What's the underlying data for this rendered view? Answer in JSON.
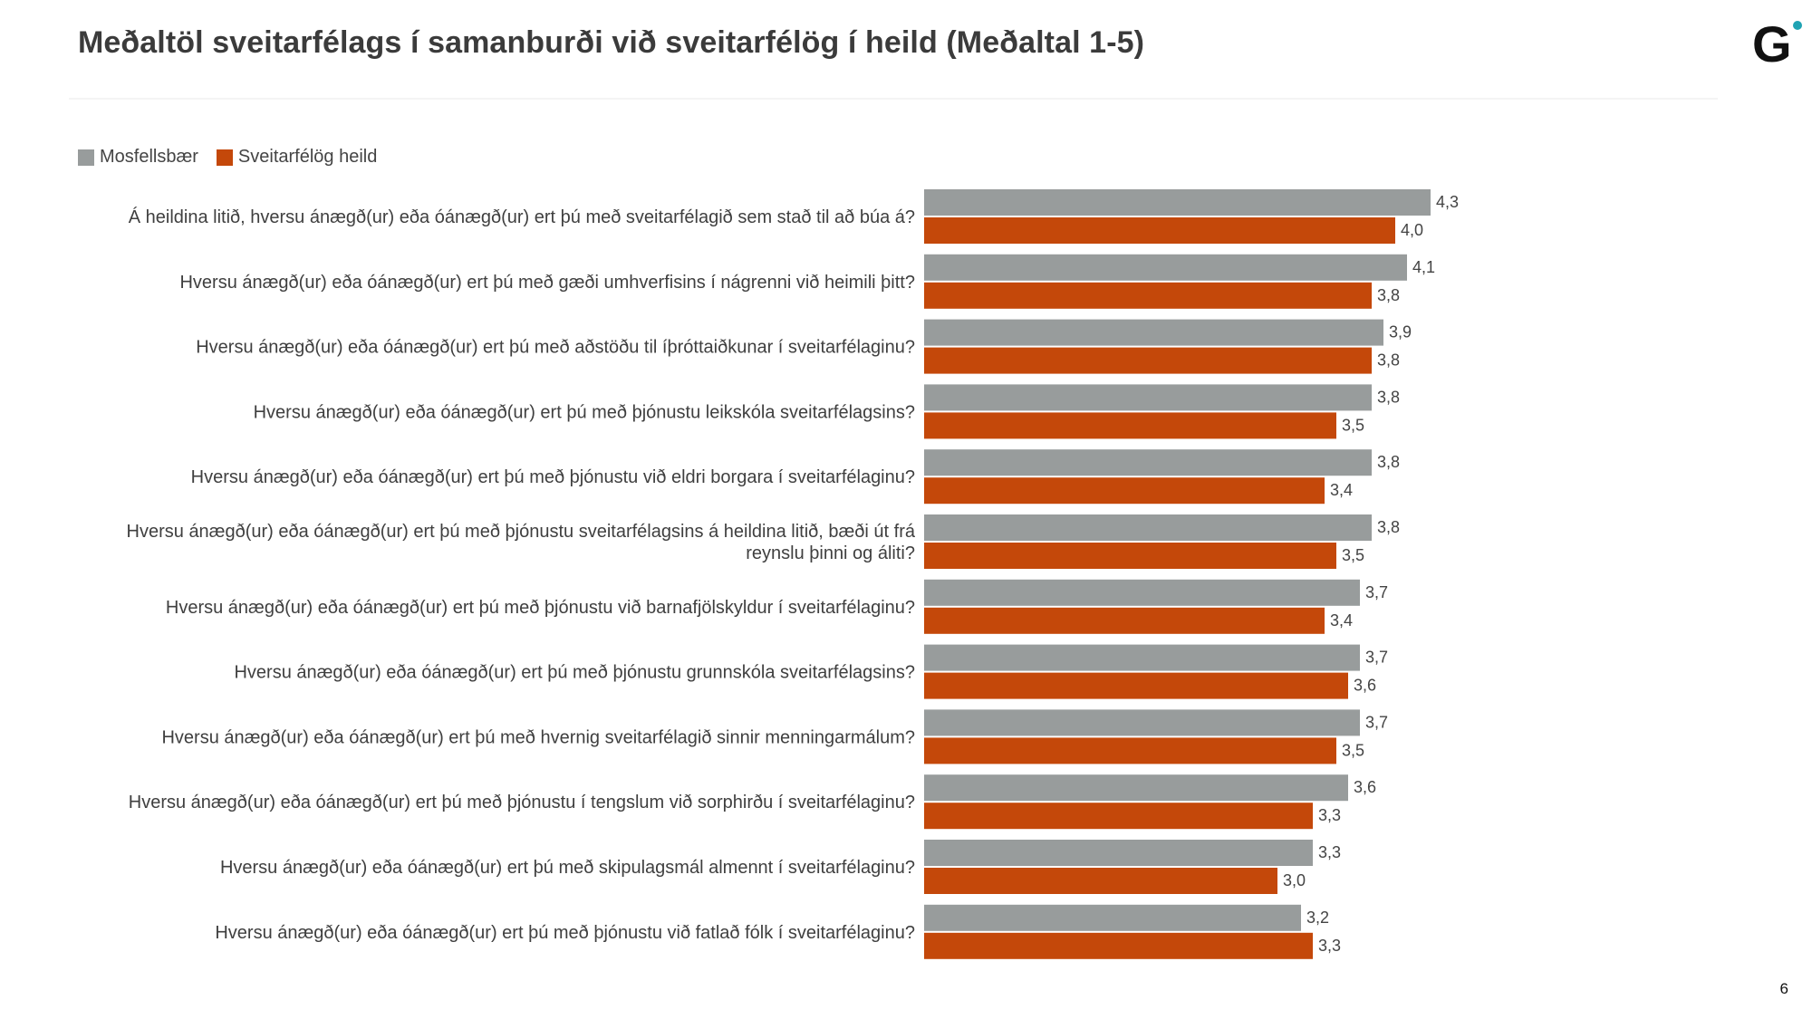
{
  "header": {
    "title": "Meðaltöl sveitarfélags í samanburði við sveitarfélög í heild (Meðaltal 1-5)",
    "logo_icon": "gallup-g-logo",
    "page_number": "6"
  },
  "colors": {
    "mosfellsbaer": "#989c9c",
    "sveitarfelog": "#c4480a",
    "logo_dot": "#1fa3b3"
  },
  "chart_data": {
    "type": "bar",
    "orientation": "horizontal",
    "title": "Meðaltöl sveitarfélags í samanburði við sveitarfélög í heild (Meðaltal 1-5)",
    "legend_position": "top-left",
    "grid": false,
    "xlim": [
      0,
      5
    ],
    "categories": [
      [
        "Á heildina litið, hversu ánægð(ur) eða óánægð(ur) ert þú með sveitarfélagið sem stað til að búa á?"
      ],
      [
        "Hversu ánægð(ur) eða óánægð(ur) ert þú með gæði umhverfisins í nágrenni við heimili þitt?"
      ],
      [
        "Hversu ánægð(ur) eða óánægð(ur) ert þú með aðstöðu til íþróttaiðkunar í sveitarfélaginu?"
      ],
      [
        "Hversu ánægð(ur) eða óánægð(ur) ert þú með þjónustu leikskóla sveitarfélagsins?"
      ],
      [
        "Hversu ánægð(ur) eða óánægð(ur) ert þú með þjónustu við eldri borgara í sveitarfélaginu?"
      ],
      [
        "Hversu ánægð(ur) eða óánægð(ur) ert þú með þjónustu sveitarfélagsins á heildina litið, bæði út frá",
        "reynslu þinni og áliti?"
      ],
      [
        "Hversu ánægð(ur) eða óánægð(ur) ert þú með þjónustu við barnafjölskyldur í sveitarfélaginu?"
      ],
      [
        "Hversu ánægð(ur) eða óánægð(ur) ert þú með þjónustu grunnskóla sveitarfélagsins?"
      ],
      [
        "Hversu ánægð(ur) eða óánægð(ur) ert þú með hvernig sveitarfélagið sinnir menningarmálum?"
      ],
      [
        "Hversu ánægð(ur) eða óánægð(ur) ert þú með þjónustu í tengslum við sorphirðu í sveitarfélaginu?"
      ],
      [
        "Hversu ánægð(ur) eða óánægð(ur) ert þú með skipulagsmál almennt í sveitarfélaginu?"
      ],
      [
        "Hversu ánægð(ur) eða óánægð(ur) ert þú með þjónustu við fatlað fólk í sveitarfélaginu?"
      ]
    ],
    "series": [
      {
        "name": "Mosfellsbær",
        "color": "#989c9c",
        "values": [
          4.3,
          4.1,
          3.9,
          3.8,
          3.8,
          3.8,
          3.7,
          3.7,
          3.7,
          3.6,
          3.3,
          3.2
        ],
        "labels": [
          "4,3",
          "4,1",
          "3,9",
          "3,8",
          "3,8",
          "3,8",
          "3,7",
          "3,7",
          "3,7",
          "3,6",
          "3,3",
          "3,2"
        ]
      },
      {
        "name": "Sveitarfélög heild",
        "color": "#c4480a",
        "values": [
          4.0,
          3.8,
          3.8,
          3.5,
          3.4,
          3.5,
          3.4,
          3.6,
          3.5,
          3.3,
          3.0,
          3.3
        ],
        "labels": [
          "4,0",
          "3,8",
          "3,8",
          "3,5",
          "3,4",
          "3,5",
          "3,4",
          "3,6",
          "3,5",
          "3,3",
          "3,0",
          "3,3"
        ]
      }
    ]
  }
}
